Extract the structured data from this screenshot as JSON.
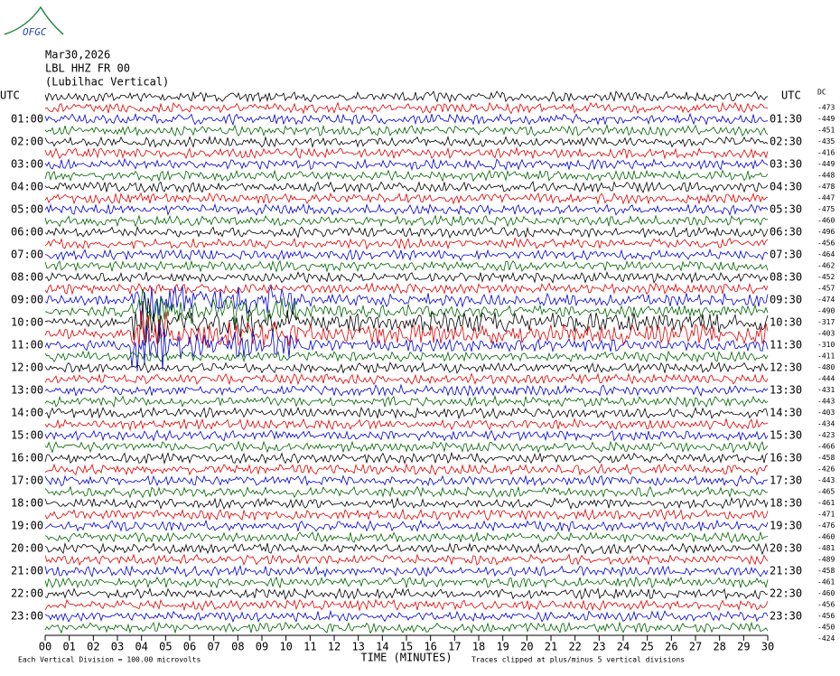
{
  "logo": "OFGC",
  "header": {
    "date": "Mar30,2026",
    "station": "LBL HHZ FR 00",
    "location": "(Lubilhac Vertical)"
  },
  "left_axis": {
    "title": "UTC",
    "labels": [
      "01:00",
      "02:00",
      "03:00",
      "04:00",
      "05:00",
      "06:00",
      "07:00",
      "08:00",
      "09:00",
      "10:00",
      "11:00",
      "12:00",
      "13:00",
      "14:00",
      "15:00",
      "16:00",
      "17:00",
      "18:00",
      "19:00",
      "20:00",
      "21:00",
      "22:00",
      "23:00"
    ]
  },
  "right_axis": {
    "title": "UTC",
    "labels": [
      "01:30",
      "02:30",
      "03:30",
      "04:30",
      "05:30",
      "06:30",
      "07:30",
      "08:30",
      "09:30",
      "10:30",
      "11:30",
      "12:30",
      "13:30",
      "14:30",
      "15:30",
      "16:30",
      "17:30",
      "18:30",
      "19:30",
      "20:30",
      "21:30",
      "22:30",
      "23:30"
    ],
    "offset_title": "DC",
    "offsets": [
      -473,
      -449,
      -451,
      -435,
      -416,
      -449,
      -448,
      -478,
      -447,
      -475,
      -460,
      -496,
      -456,
      -464,
      -462,
      -452,
      -457,
      -474,
      -490,
      -317,
      -403,
      -310,
      -411,
      -480,
      -444,
      -431,
      -443,
      -403,
      -434,
      -423,
      -466,
      -458,
      -426,
      -443,
      -465,
      -461,
      -471,
      -476,
      -460,
      -481,
      -489,
      -458,
      -461,
      -460,
      -456,
      -456,
      -450,
      -424
    ]
  },
  "x_axis": {
    "title": "TIME (MINUTES)",
    "labels": [
      "00",
      "01",
      "02",
      "03",
      "04",
      "05",
      "06",
      "07",
      "08",
      "09",
      "10",
      "11",
      "12",
      "13",
      "14",
      "15",
      "16",
      "17",
      "18",
      "19",
      "20",
      "21",
      "22",
      "23",
      "24",
      "25",
      "26",
      "27",
      "28",
      "29",
      "30"
    ]
  },
  "footer": {
    "scale": "Each Vertical Division =  100.00 microvolts",
    "clipping": "Traces clipped at plus/minus 5 vertical divisions"
  },
  "trace_colors": [
    "#000000",
    "#e00000",
    "#0000d0",
    "#006400"
  ]
}
